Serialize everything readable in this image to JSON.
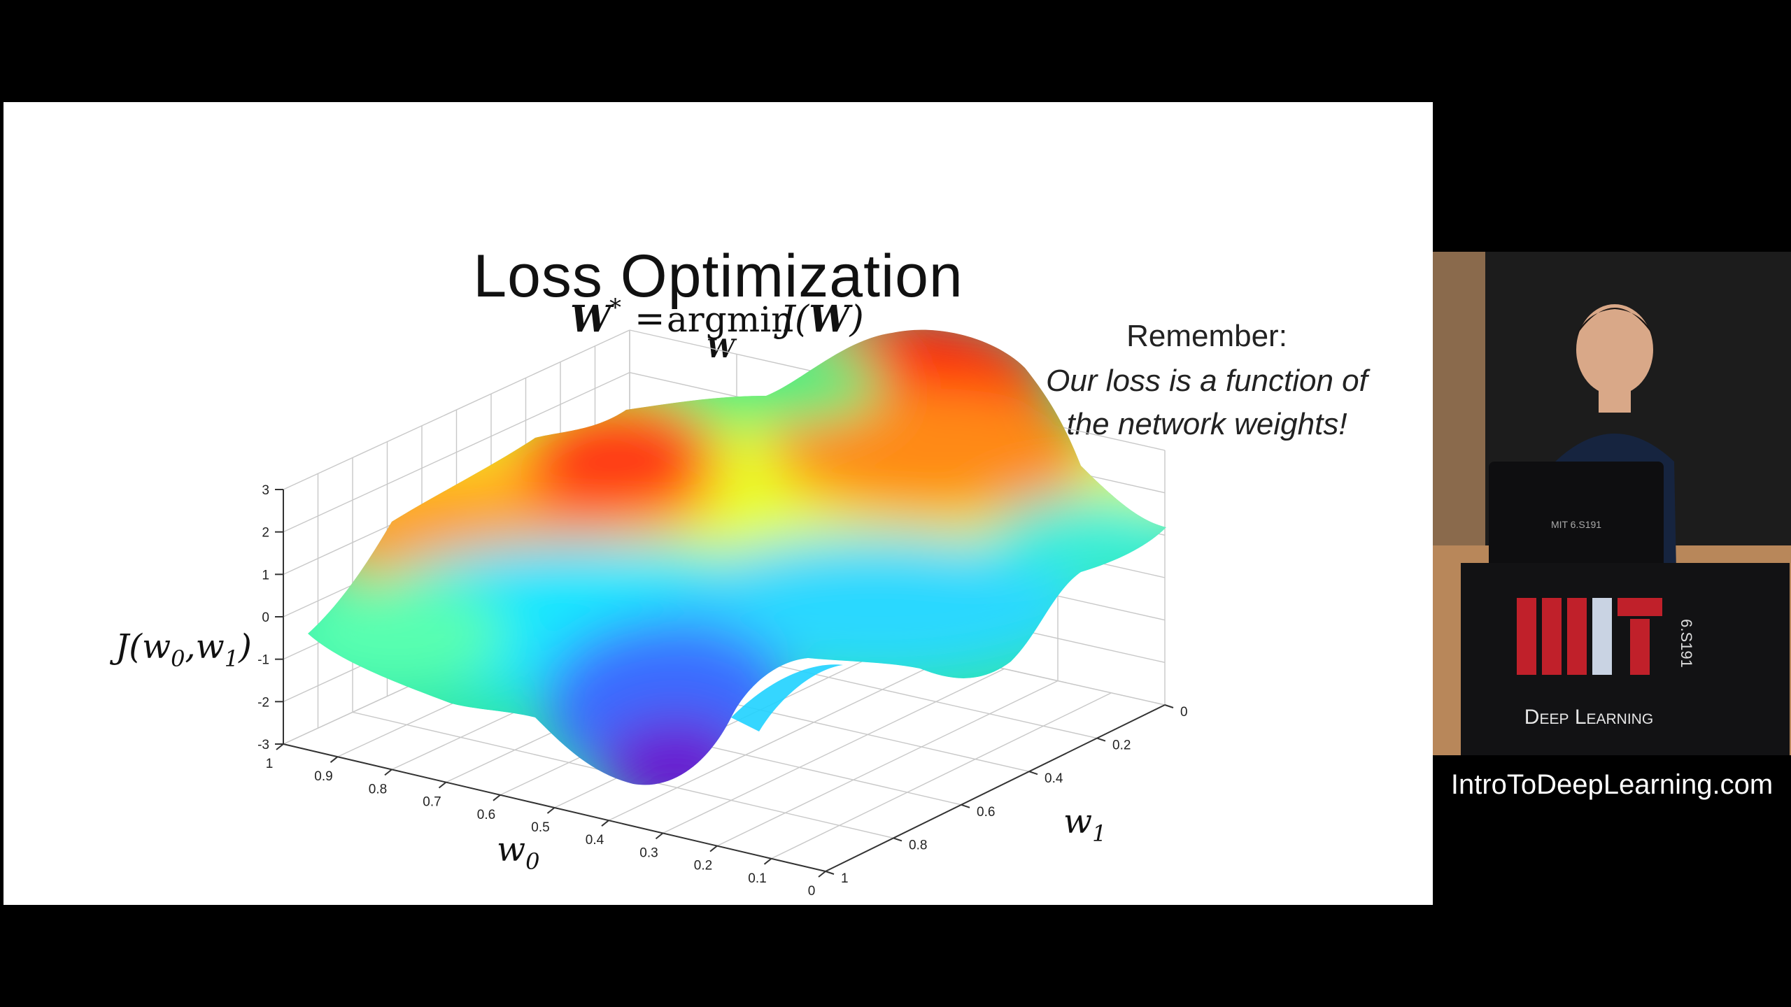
{
  "slide": {
    "title": "Loss Optimization",
    "formula": {
      "lhs": "W",
      "sup": "*",
      "eq": "=",
      "op": "argmin",
      "under": "W",
      "rhs_fn": "J(",
      "rhs_arg": "W",
      "rhs_close": ")"
    },
    "remember": {
      "head": "Remember:",
      "line1": "Our loss is a function of",
      "line2": "the network weights!"
    }
  },
  "chart_data": {
    "type": "surface",
    "zlabel_fn": "J(w",
    "zlabel_sub0": "0",
    "zlabel_mid": ",w",
    "zlabel_sub1": "1",
    "zlabel_close": ")",
    "xlabel_base": "w",
    "xlabel_sub": "0",
    "ylabel_base": "w",
    "ylabel_sub": "1",
    "z_ticks": [
      "3",
      "2",
      "1",
      "0",
      "-1",
      "-2",
      "-3"
    ],
    "x_ticks": [
      "1",
      "0.9",
      "0.8",
      "0.7",
      "0.6",
      "0.5",
      "0.4",
      "0.3",
      "0.2",
      "0.1",
      "0"
    ],
    "y_ticks": [
      "0",
      "0.2",
      "0.4",
      "0.6",
      "0.8",
      "1"
    ],
    "zlim": [
      -3,
      3
    ],
    "xlim": [
      1,
      0
    ],
    "ylim": [
      0,
      1
    ],
    "grid": true,
    "colormap": "jet"
  },
  "presenter": {
    "podium_logo_letters": "MIT",
    "podium_course": "6.S191",
    "podium_text": "Deep Learning",
    "laptop_sticker": "MIT 6.S191"
  },
  "site_url": "IntroToDeepLearning.com",
  "colors": {
    "background": "#000000",
    "slide": "#ffffff",
    "podium_red": "#c0202a"
  }
}
